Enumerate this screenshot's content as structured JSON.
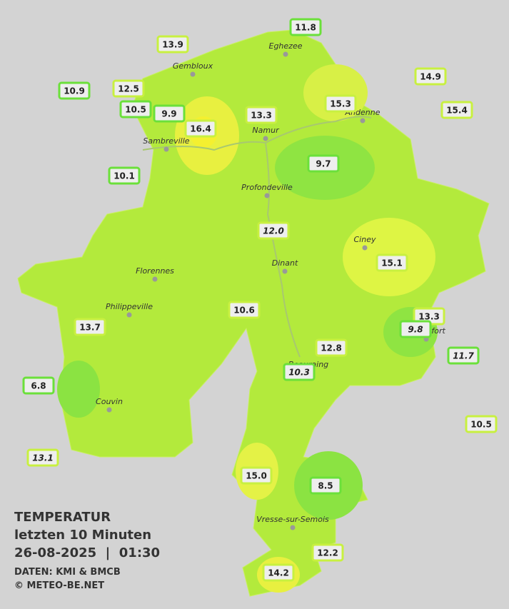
{
  "title": "TEMPERATUR",
  "subtitle": "letzten 10 Minuten",
  "datetime": "26-08-2025  |  01:30",
  "source": "DATEN: KMI & BMCB",
  "copyright": "© METEO-BE.NET",
  "cities": [
    "Eghezee",
    "Gembloux",
    "Andenne",
    "Namur",
    "Sambreville",
    "Profondeville",
    "Ciney",
    "Dinant",
    "Florennes",
    "Philippeville",
    "Rochefort",
    "Beauraing",
    "Couvin",
    "Vresse-sur-Semois"
  ],
  "stations": [
    "11.8",
    "13.9",
    "14.9",
    "10.9",
    "12.5",
    "10.5",
    "9.9",
    "16.4",
    "13.3",
    "15.3",
    "15.4",
    "9.7",
    "10.1",
    "12.0",
    "15.1",
    "10.6",
    "13.3",
    "9.8",
    "13.7",
    "12.8",
    "11.7",
    "10.3",
    "6.8",
    "10.5",
    "13.1",
    "15.0",
    "8.5",
    "12.2",
    "14.2"
  ]
}
